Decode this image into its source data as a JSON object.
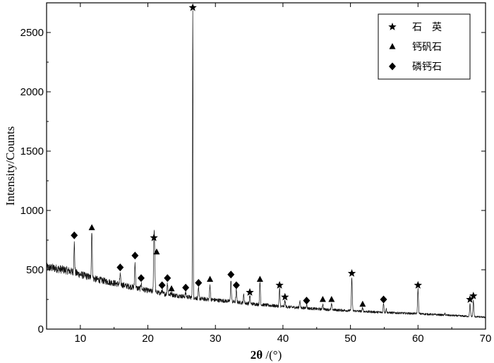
{
  "chart_data": {
    "type": "line",
    "xlabel_main": "2θ",
    "xlabel_unit": " /(°)",
    "ylabel": "Intensity/Counts",
    "xlim": [
      5,
      70
    ],
    "ylim": [
      0,
      2750
    ],
    "xticks": [
      10,
      20,
      30,
      40,
      50,
      60,
      70
    ],
    "yticks": [
      0,
      500,
      1000,
      1500,
      2000,
      2500
    ],
    "grid": false,
    "legend_position": "top-right",
    "legend": [
      {
        "marker": "star",
        "label": "石　英"
      },
      {
        "marker": "triangle",
        "label": "钙矾石"
      },
      {
        "marker": "diamond",
        "label": "磷钙石"
      }
    ],
    "baseline": [
      [
        5,
        520
      ],
      [
        6,
        515
      ],
      [
        7,
        505
      ],
      [
        8,
        495
      ],
      [
        9,
        480
      ],
      [
        10,
        460
      ],
      [
        11,
        445
      ],
      [
        12,
        425
      ],
      [
        14,
        400
      ],
      [
        16,
        375
      ],
      [
        18,
        350
      ],
      [
        20,
        325
      ],
      [
        22,
        300
      ],
      [
        24,
        285
      ],
      [
        26,
        270
      ],
      [
        28,
        255
      ],
      [
        30,
        245
      ],
      [
        32,
        235
      ],
      [
        35,
        215
      ],
      [
        38,
        200
      ],
      [
        40,
        190
      ],
      [
        45,
        170
      ],
      [
        50,
        155
      ],
      [
        55,
        140
      ],
      [
        60,
        130
      ],
      [
        65,
        115
      ],
      [
        70,
        100
      ]
    ],
    "peaks": [
      {
        "x": 9.1,
        "y": 720
      },
      {
        "x": 11.7,
        "y": 835
      },
      {
        "x": 15.9,
        "y": 460
      },
      {
        "x": 18.1,
        "y": 560
      },
      {
        "x": 19.0,
        "y": 390
      },
      {
        "x": 20.9,
        "y": 720
      },
      {
        "x": 21.0,
        "y": 600
      },
      {
        "x": 22.1,
        "y": 330
      },
      {
        "x": 22.9,
        "y": 390
      },
      {
        "x": 23.5,
        "y": 310
      },
      {
        "x": 25.6,
        "y": 310
      },
      {
        "x": 26.65,
        "y": 2700
      },
      {
        "x": 27.5,
        "y": 340
      },
      {
        "x": 29.2,
        "y": 370
      },
      {
        "x": 32.3,
        "y": 410
      },
      {
        "x": 33.1,
        "y": 330
      },
      {
        "x": 34.2,
        "y": 290
      },
      {
        "x": 35.1,
        "y": 280
      },
      {
        "x": 36.6,
        "y": 390
      },
      {
        "x": 39.5,
        "y": 340
      },
      {
        "x": 40.3,
        "y": 240
      },
      {
        "x": 42.5,
        "y": 240
      },
      {
        "x": 43.5,
        "y": 210
      },
      {
        "x": 45.9,
        "y": 210
      },
      {
        "x": 47.2,
        "y": 210
      },
      {
        "x": 50.2,
        "y": 430
      },
      {
        "x": 51.8,
        "y": 180
      },
      {
        "x": 54.9,
        "y": 220
      },
      {
        "x": 55.3,
        "y": 170
      },
      {
        "x": 60.0,
        "y": 340
      },
      {
        "x": 64.0,
        "y": 130
      },
      {
        "x": 67.7,
        "y": 210
      },
      {
        "x": 68.2,
        "y": 240
      }
    ],
    "markers": [
      {
        "type": "diamond",
        "x": 9.1,
        "y": 790
      },
      {
        "type": "triangle",
        "x": 11.7,
        "y": 855
      },
      {
        "type": "diamond",
        "x": 15.9,
        "y": 520
      },
      {
        "type": "diamond",
        "x": 18.1,
        "y": 620
      },
      {
        "type": "diamond",
        "x": 19.0,
        "y": 430
      },
      {
        "type": "star",
        "x": 20.9,
        "y": 770
      },
      {
        "type": "triangle",
        "x": 21.3,
        "y": 650
      },
      {
        "type": "diamond",
        "x": 22.1,
        "y": 370
      },
      {
        "type": "diamond",
        "x": 22.9,
        "y": 430
      },
      {
        "type": "triangle",
        "x": 23.5,
        "y": 340
      },
      {
        "type": "diamond",
        "x": 25.6,
        "y": 350
      },
      {
        "type": "star",
        "x": 26.65,
        "y": 2710
      },
      {
        "type": "diamond",
        "x": 27.5,
        "y": 390
      },
      {
        "type": "triangle",
        "x": 29.2,
        "y": 420
      },
      {
        "type": "diamond",
        "x": 32.3,
        "y": 460
      },
      {
        "type": "diamond",
        "x": 33.1,
        "y": 370
      },
      {
        "type": "star",
        "x": 35.1,
        "y": 310
      },
      {
        "type": "triangle",
        "x": 36.6,
        "y": 420
      },
      {
        "type": "star",
        "x": 39.5,
        "y": 370
      },
      {
        "type": "star",
        "x": 40.3,
        "y": 270
      },
      {
        "type": "diamond",
        "x": 43.5,
        "y": 240
      },
      {
        "type": "triangle",
        "x": 45.9,
        "y": 250
      },
      {
        "type": "triangle",
        "x": 47.2,
        "y": 250
      },
      {
        "type": "star",
        "x": 50.2,
        "y": 470
      },
      {
        "type": "triangle",
        "x": 51.8,
        "y": 210
      },
      {
        "type": "diamond",
        "x": 54.9,
        "y": 250
      },
      {
        "type": "star",
        "x": 60.0,
        "y": 370
      },
      {
        "type": "star",
        "x": 67.7,
        "y": 250
      },
      {
        "type": "star",
        "x": 68.2,
        "y": 280
      }
    ]
  }
}
